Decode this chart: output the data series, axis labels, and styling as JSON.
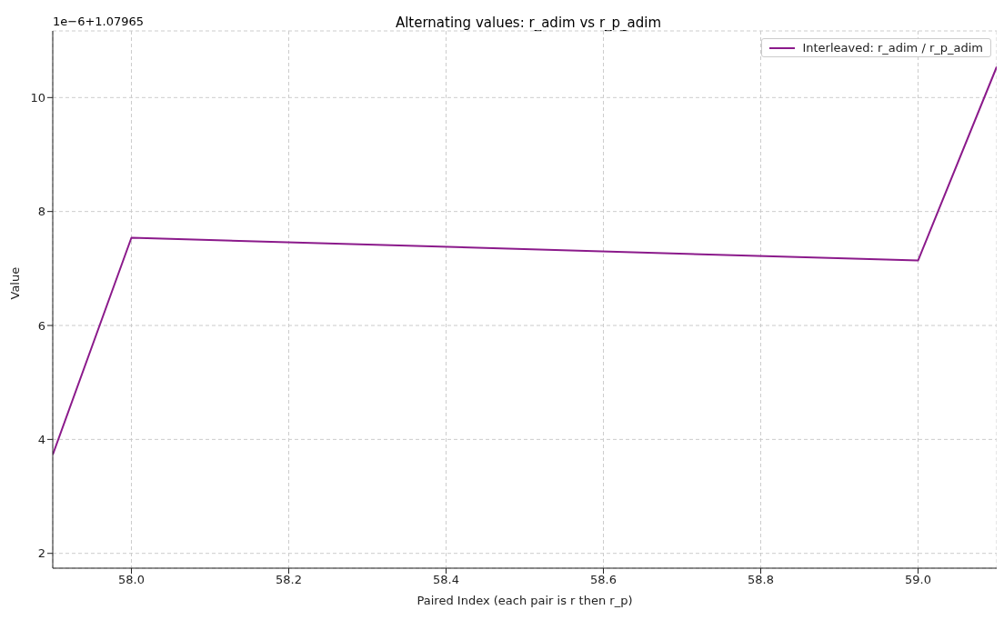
{
  "chart_data": {
    "type": "line",
    "title": "Alternating values: r_adim vs r_p_adim",
    "xlabel": "Paired Index (each pair is r then r_p)",
    "ylabel": "Value",
    "annotations": [
      "1e−6+1.07965"
    ],
    "x": [
      57.9,
      58.0,
      59.0,
      59.1
    ],
    "series": [
      {
        "name": "Interleaved: r_adim / r_p_adim",
        "color": "#8b1a8b",
        "values": [
          3.73,
          7.54,
          7.14,
          10.54
        ]
      }
    ],
    "xlim": [
      57.9,
      59.1
    ],
    "xticks": [
      {
        "value": 58.0,
        "label": "58.0"
      },
      {
        "value": 58.2,
        "label": "58.2"
      },
      {
        "value": 58.4,
        "label": "58.4"
      },
      {
        "value": 58.6,
        "label": "58.6"
      },
      {
        "value": 58.8,
        "label": "58.8"
      },
      {
        "value": 59.0,
        "label": "59.0"
      }
    ],
    "ylim": [
      1.74,
      11.17
    ],
    "yticks": [
      2,
      4,
      6,
      8,
      10
    ],
    "grid": true,
    "legend": "top right",
    "marker": "none",
    "line_style": "solid"
  }
}
